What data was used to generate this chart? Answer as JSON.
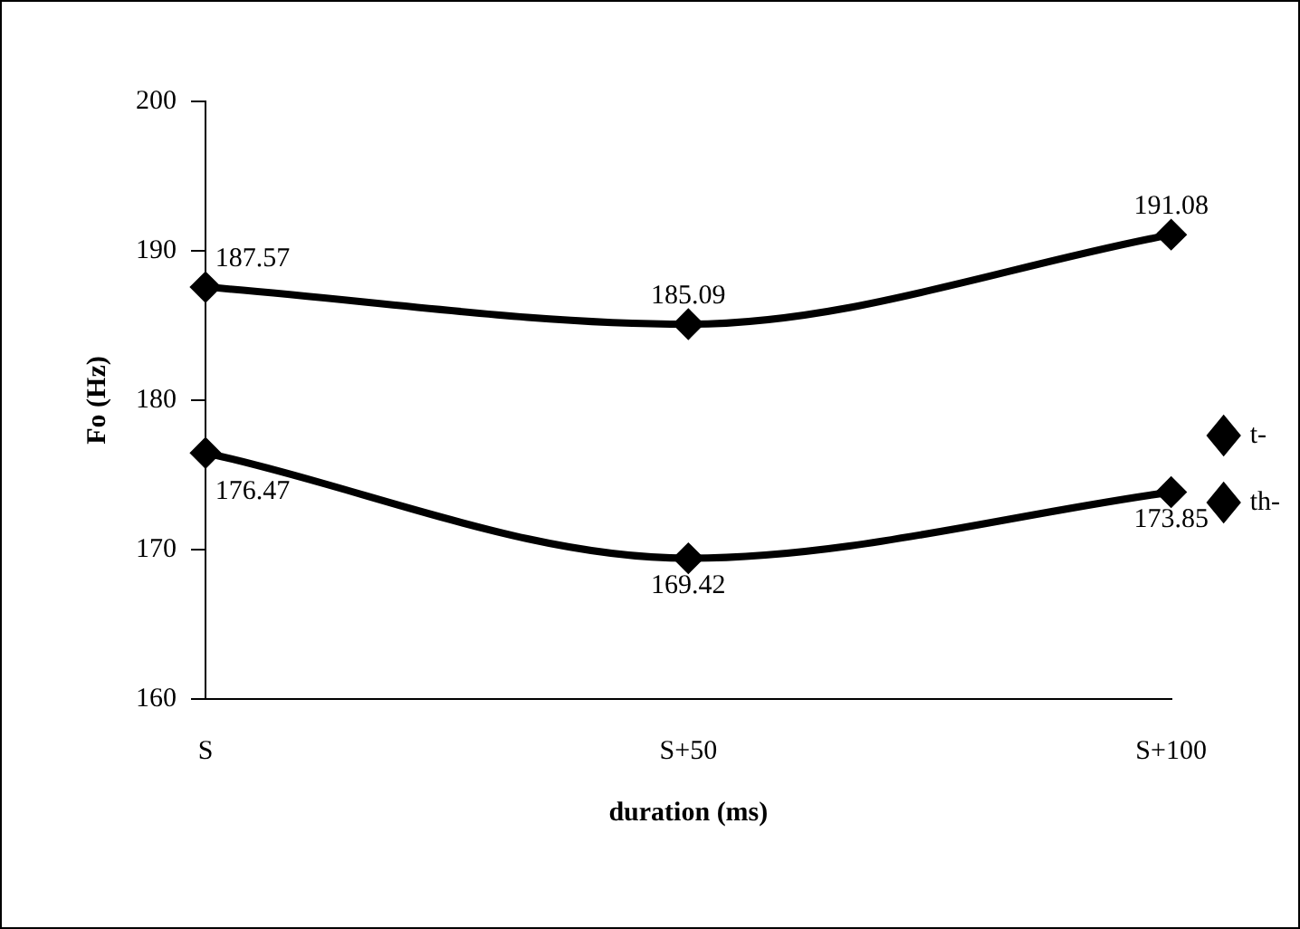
{
  "chart_data": {
    "type": "line",
    "xlabel": "duration (ms)",
    "ylabel": "Fo (Hz)",
    "categories": [
      "S",
      "S+50",
      "S+100"
    ],
    "series": [
      {
        "name": "t-",
        "color": "#000000",
        "values": [
          176.47,
          169.42,
          173.85
        ]
      },
      {
        "name": "th-",
        "color": "#000000",
        "values": [
          187.57,
          185.09,
          191.08
        ]
      }
    ],
    "ylim": [
      160,
      200
    ],
    "yticks": [
      160,
      170,
      180,
      190,
      200
    ],
    "grid": false,
    "legend": "right",
    "marker": "diamond",
    "line_style": "solid",
    "data_labels": true
  }
}
